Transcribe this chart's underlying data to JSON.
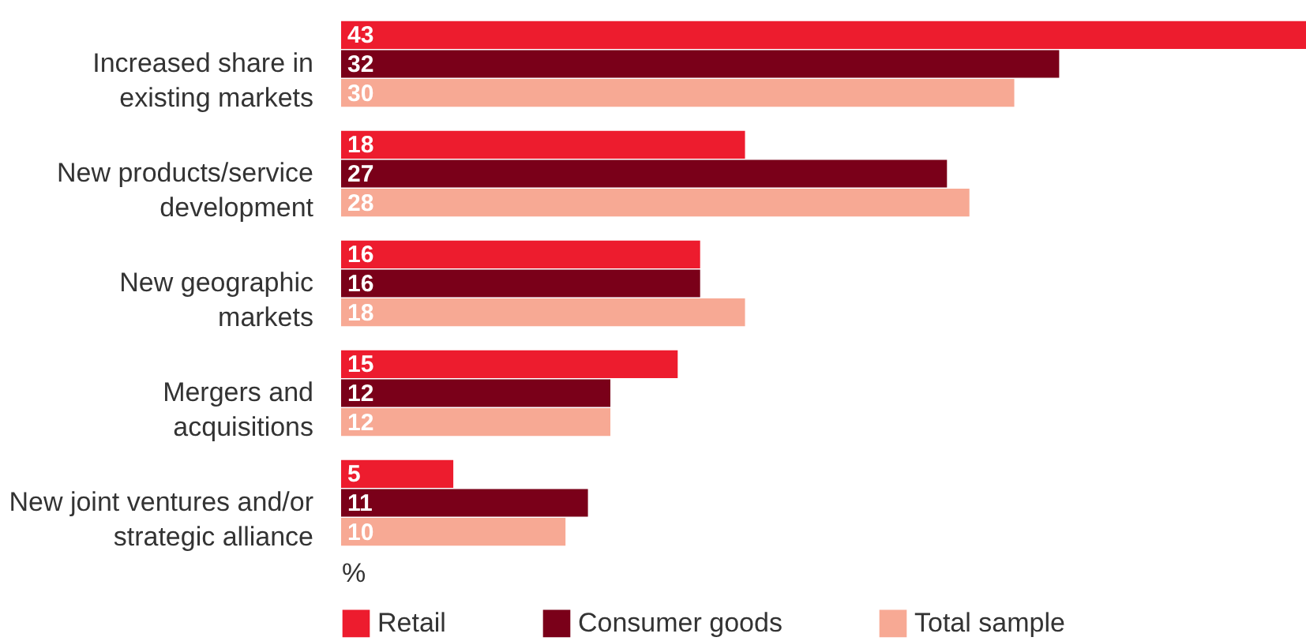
{
  "chart_data": {
    "type": "bar",
    "orientation": "horizontal",
    "xlabel": "%",
    "data_labels": true,
    "legend": "bottom",
    "categories": [
      "Increased share in\nexisting markets",
      "New products/service\ndevelopment",
      "New geographic\nmarkets",
      "Mergers and\nacquisitions",
      "New joint ventures and/or\nstrategic alliance"
    ],
    "series": [
      {
        "name": "Retail",
        "color": "#ed1c2e",
        "values": [
          43,
          18,
          16,
          15,
          5
        ]
      },
      {
        "name": "Consumer goods",
        "color": "#7a0019",
        "values": [
          32,
          27,
          16,
          12,
          11
        ]
      },
      {
        "name": "Total sample",
        "color": "#f7a994",
        "values": [
          30,
          28,
          18,
          12,
          10
        ]
      }
    ]
  }
}
